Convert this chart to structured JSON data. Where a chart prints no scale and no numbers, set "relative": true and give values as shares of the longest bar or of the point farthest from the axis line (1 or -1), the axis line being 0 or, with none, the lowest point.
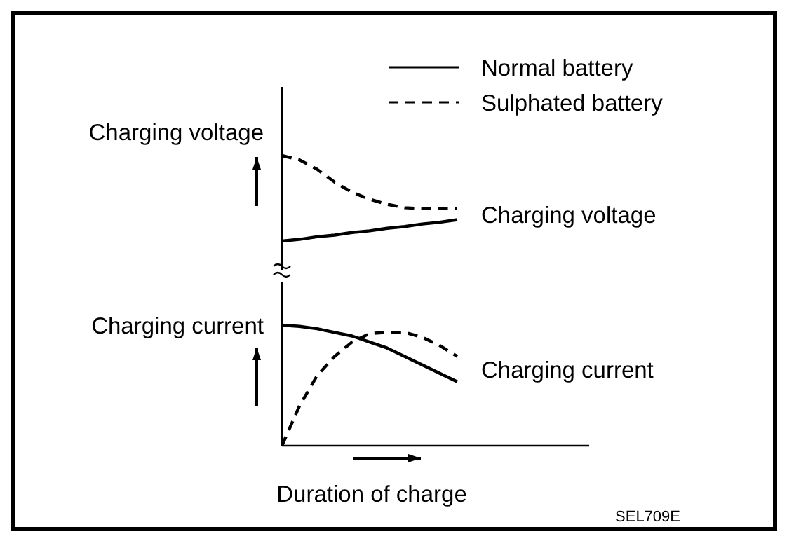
{
  "chart_data": [
    {
      "type": "line",
      "relative": true,
      "ylabel": "Charging voltage",
      "annotations": [
        "Charging voltage"
      ],
      "categories": [
        null,
        null,
        null,
        null,
        null,
        null,
        null,
        null,
        null,
        null,
        null
      ],
      "legend": "top right",
      "tick_labels": false,
      "series": [
        {
          "name": "Normal battery",
          "color": "#000000",
          "line_style": "solid",
          "values": [
            0,
            0.02,
            0.05,
            0.07,
            0.1,
            0.12,
            0.15,
            0.17,
            0.2,
            0.22,
            0.25
          ]
        },
        {
          "name": "Sulphated battery",
          "color": "#000000",
          "line_style": "dashed",
          "values": [
            1,
            0.95,
            0.84,
            0.69,
            0.57,
            0.49,
            0.43,
            0.39,
            0.38,
            0.38,
            0.38
          ]
        }
      ]
    },
    {
      "type": "line",
      "relative": true,
      "ylabel": "Charging current",
      "xlabel": "Duration of charge",
      "annotations": [
        "Charging current",
        "SEL709E"
      ],
      "categories": [
        null,
        null,
        null,
        null,
        null,
        null,
        null,
        null,
        null,
        null,
        null
      ],
      "tick_labels": false,
      "series": [
        {
          "color": "#000000",
          "line_style": "solid",
          "values": [
            1,
            0.99,
            0.97,
            0.94,
            0.91,
            0.86,
            0.81,
            0.74,
            0.67,
            0.6,
            0.53
          ]
        },
        {
          "color": "#000000",
          "line_style": "dashed",
          "values": [
            0,
            0.33,
            0.58,
            0.74,
            0.86,
            0.93,
            0.94,
            0.94,
            0.9,
            0.83,
            0.74
          ]
        }
      ]
    }
  ]
}
